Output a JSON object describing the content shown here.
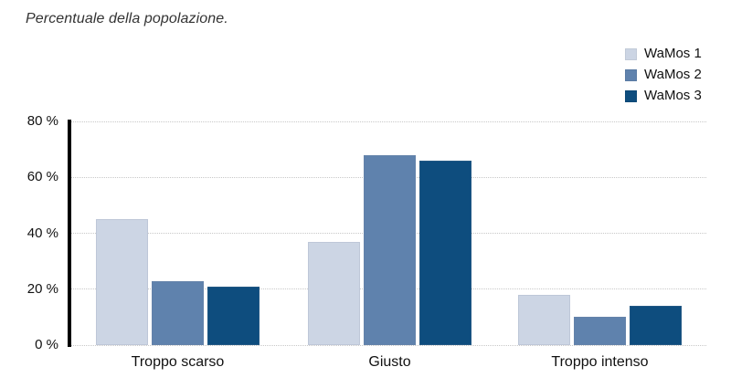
{
  "title": "Percentuale della popolazione.",
  "colors": {
    "background": "#ffffff",
    "title_text": "#333333",
    "axis": "#000000",
    "gridline": "#c8c8c8",
    "label_text": "#111111",
    "series1": "#ccd5e4",
    "series2": "#5f82ad",
    "series3": "#0e4d7e"
  },
  "legend": {
    "items": [
      {
        "label": "WaMos 1",
        "color": "#ccd5e4"
      },
      {
        "label": "WaMos 2",
        "color": "#5f82ad"
      },
      {
        "label": "WaMos 3",
        "color": "#0e4d7e"
      }
    ]
  },
  "chart_data": {
    "type": "bar",
    "title": "Percentuale della popolazione.",
    "categories": [
      "Troppo scarso",
      "Giusto",
      "Troppo intenso"
    ],
    "series": [
      {
        "name": "WaMos 1",
        "color": "#ccd5e4",
        "values": [
          45,
          37,
          18
        ]
      },
      {
        "name": "WaMos 2",
        "color": "#5f82ad",
        "values": [
          23,
          68,
          10
        ]
      },
      {
        "name": "WaMos 3",
        "color": "#0e4d7e",
        "values": [
          21,
          66,
          14
        ]
      }
    ],
    "xlabel": "",
    "ylabel": "Percentuale della popolazione",
    "ylim": [
      0,
      80
    ],
    "yticks": [
      {
        "value": 0,
        "label": "0 %"
      },
      {
        "value": 20,
        "label": "20 %"
      },
      {
        "value": 40,
        "label": "40 %"
      },
      {
        "value": 60,
        "label": "60 %"
      },
      {
        "value": 80,
        "label": "80 %"
      }
    ],
    "grid": "horizontal-dotted",
    "legend_position": "top-right"
  }
}
